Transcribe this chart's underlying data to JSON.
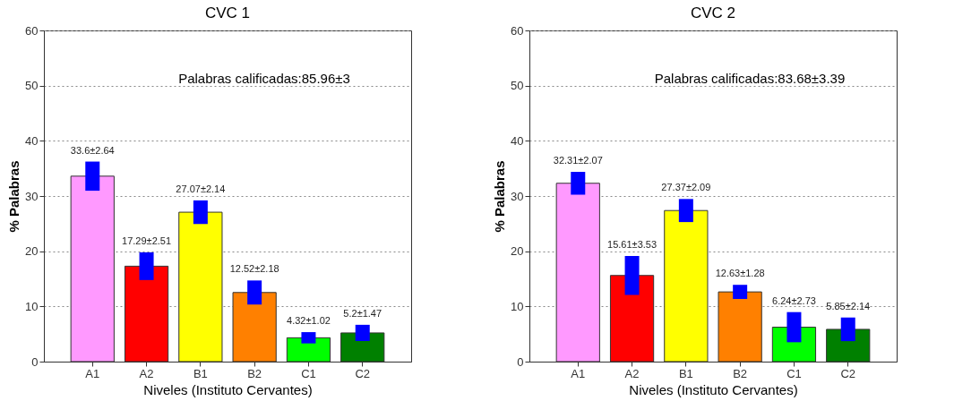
{
  "chart_data": [
    {
      "type": "bar",
      "title": "CVC 1",
      "xlabel": "Niveles (Instituto Cervantes)",
      "ylabel": "% Palabras",
      "categories": [
        "A1",
        "A2",
        "B1",
        "B2",
        "C1",
        "C2"
      ],
      "values": [
        33.6,
        17.29,
        27.07,
        12.52,
        4.32,
        5.2
      ],
      "errors": [
        2.64,
        2.51,
        2.14,
        2.18,
        1.02,
        1.47
      ],
      "value_labels": [
        "33.6±2.64",
        "17.29±2.51",
        "27.07±2.14",
        "12.52±2.18",
        "4.32±1.02",
        "5.2±1.47"
      ],
      "colors": [
        "#ff99ff",
        "#ff0000",
        "#ffff00",
        "#ff8000",
        "#00ff00",
        "#008000"
      ],
      "annotations": [
        "Palabras calificadas:85.96±3"
      ],
      "ylim": [
        0,
        60
      ],
      "yticks": [
        0,
        10,
        20,
        30,
        40,
        50,
        60
      ],
      "grid": "y"
    },
    {
      "type": "bar",
      "title": "CVC 2",
      "xlabel": "Niveles (Instituto Cervantes)",
      "ylabel": "% Palabras",
      "categories": [
        "A1",
        "A2",
        "B1",
        "B2",
        "C1",
        "C2"
      ],
      "values": [
        32.31,
        15.61,
        27.37,
        12.63,
        6.24,
        5.85
      ],
      "errors": [
        2.07,
        3.53,
        2.09,
        1.28,
        2.73,
        2.14
      ],
      "value_labels": [
        "32.31±2.07",
        "15.61±3.53",
        "27.37±2.09",
        "12.63±1.28",
        "6.24±2.73",
        "5.85±2.14"
      ],
      "colors": [
        "#ff99ff",
        "#ff0000",
        "#ffff00",
        "#ff8000",
        "#00ff00",
        "#008000"
      ],
      "annotations": [
        "Palabras calificadas:83.68±3.39"
      ],
      "ylim": [
        0,
        60
      ],
      "yticks": [
        0,
        10,
        20,
        30,
        40,
        50,
        60
      ],
      "grid": "y"
    }
  ]
}
